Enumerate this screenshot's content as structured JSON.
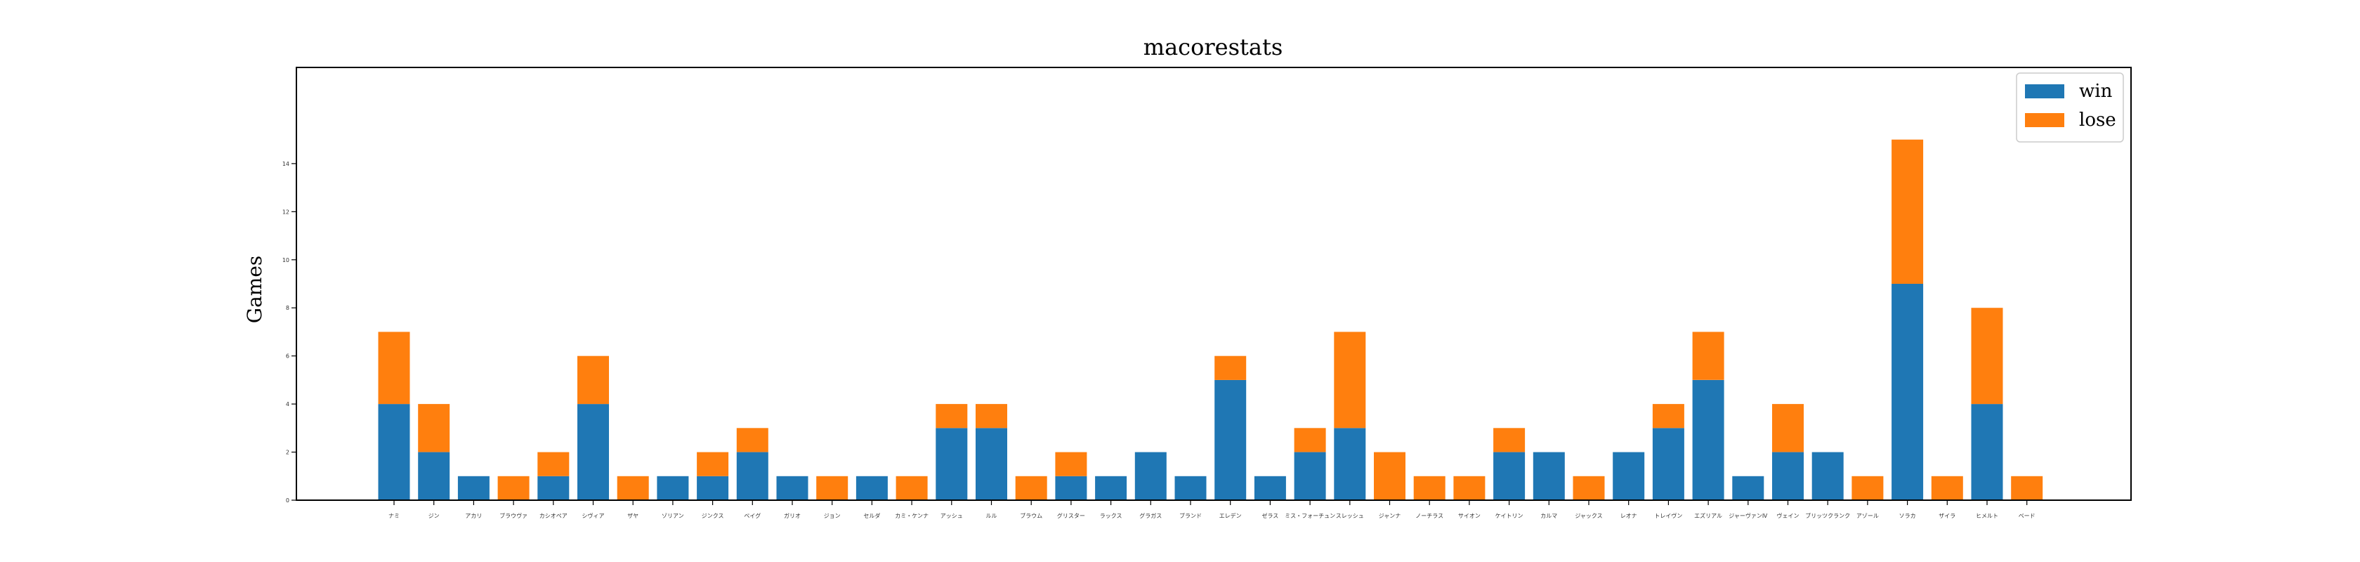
{
  "chart_data": {
    "type": "bar",
    "stacked": true,
    "title": "macorestats",
    "xlabel": "",
    "ylabel": "Games",
    "ylim": [
      0,
      18
    ],
    "yticks": [
      0,
      2,
      4,
      6,
      8,
      10,
      12,
      14
    ],
    "grid": false,
    "legend_position": "top-right",
    "categories": [
      "ナミ",
      "ジン",
      "アカリ",
      "ブラウヴァ",
      "カシオペア",
      "シヴィア",
      "ザヤ",
      "ゾリアン",
      "ジンクス",
      "ベイグ",
      "ガリオ",
      "ジョン",
      "セルダ",
      "カミ・ケンナ",
      "アッシュ",
      "ルル",
      "ブラウム",
      "グリスター",
      "ラックス",
      "グラガス",
      "ブランド",
      "エレデン",
      "ゼラス",
      "ミス・フォーチュン",
      "スレッシュ",
      "ジャンナ",
      "ノーチラス",
      "サイオン",
      "ケイトリン",
      "カルマ",
      "ジャックス",
      "レオナ",
      "トレイヴン",
      "エズリアル",
      "ジャーヴァンⅣ",
      "ヴェイン",
      "ブリッツクランク",
      "アゾール",
      "ソラカ",
      "ザイラ",
      "ヒメルト",
      "ベード"
    ],
    "series": [
      {
        "name": "win",
        "color": "#1f77b4",
        "values": [
          4,
          2,
          1,
          0,
          1,
          4,
          0,
          1,
          1,
          2,
          1,
          0,
          1,
          0,
          3,
          3,
          0,
          1,
          1,
          2,
          1,
          5,
          1,
          2,
          3,
          0,
          0,
          0,
          2,
          2,
          0,
          2,
          3,
          5,
          1,
          2,
          2,
          0,
          9,
          0,
          4,
          0
        ]
      },
      {
        "name": "lose",
        "color": "#ff7f0e",
        "values": [
          3,
          2,
          0,
          1,
          1,
          2,
          1,
          0,
          1,
          1,
          0,
          1,
          0,
          1,
          1,
          1,
          1,
          1,
          0,
          0,
          0,
          1,
          0,
          1,
          4,
          2,
          1,
          1,
          1,
          0,
          1,
          0,
          1,
          2,
          0,
          2,
          0,
          1,
          6,
          1,
          4,
          1
        ]
      }
    ]
  }
}
